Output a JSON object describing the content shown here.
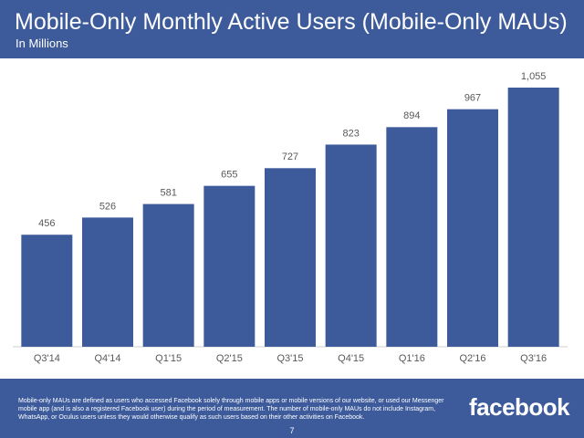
{
  "chart_data": {
    "type": "bar",
    "title": "Mobile-Only Monthly Active Users (Mobile-Only MAUs)",
    "subtitle": "In Millions",
    "categories": [
      "Q3'14",
      "Q4'14",
      "Q1'15",
      "Q2'15",
      "Q3'15",
      "Q4'15",
      "Q1'16",
      "Q2'16",
      "Q3'16"
    ],
    "values": [
      456,
      526,
      581,
      655,
      727,
      823,
      894,
      967,
      1055
    ],
    "value_labels": [
      "456",
      "526",
      "581",
      "655",
      "727",
      "823",
      "894",
      "967",
      "1,055"
    ],
    "color": "#3d5b9b"
  },
  "footer": {
    "note": "Mobile-only MAUs are defined as users who accessed Facebook solely through mobile apps or mobile versions of our website, or used our Messenger mobile app (and is also a registered Facebook user) during the period of measurement. The number of mobile-only MAUs do not include Instagram, WhatsApp, or Oculus users unless they would otherwise qualify as such users based on their other activities on Facebook.",
    "logo": "facebook",
    "page": "7"
  }
}
